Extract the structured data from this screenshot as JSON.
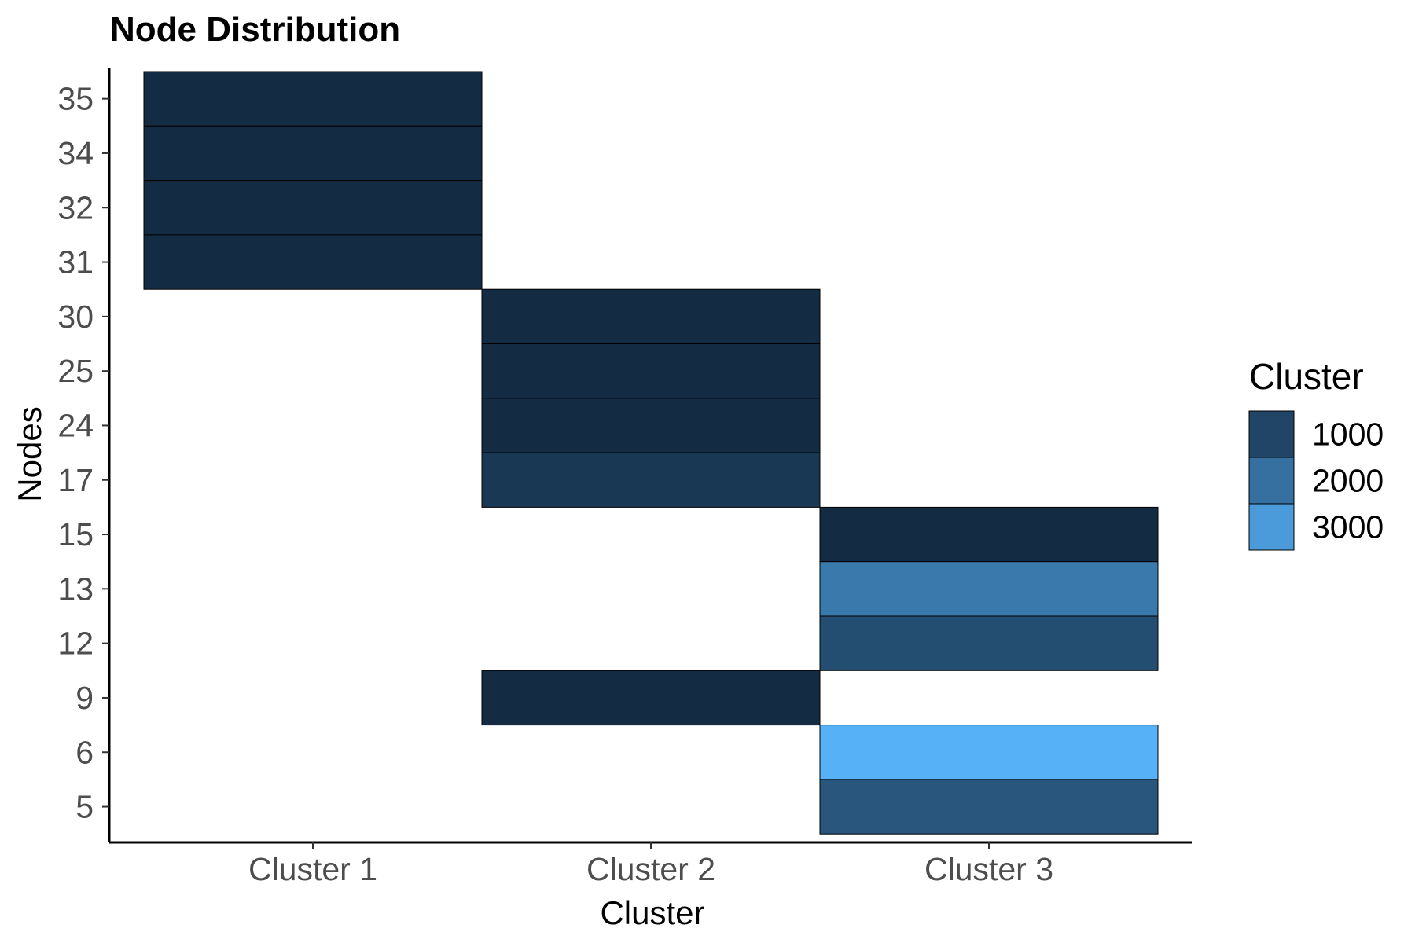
{
  "chart_data": {
    "type": "heatmap",
    "title": "Node Distribution",
    "xlabel": "Cluster",
    "ylabel": "Nodes",
    "x_categories": [
      "Cluster 1",
      "Cluster 2",
      "Cluster 3"
    ],
    "y_categories": [
      "5",
      "6",
      "9",
      "12",
      "13",
      "15",
      "17",
      "24",
      "25",
      "30",
      "31",
      "32",
      "34",
      "35"
    ],
    "cells": [
      {
        "x": "Cluster 1",
        "y": "35",
        "value": 400
      },
      {
        "x": "Cluster 1",
        "y": "34",
        "value": 400
      },
      {
        "x": "Cluster 1",
        "y": "32",
        "value": 400
      },
      {
        "x": "Cluster 1",
        "y": "31",
        "value": 400
      },
      {
        "x": "Cluster 2",
        "y": "30",
        "value": 400
      },
      {
        "x": "Cluster 2",
        "y": "25",
        "value": 400
      },
      {
        "x": "Cluster 2",
        "y": "24",
        "value": 400
      },
      {
        "x": "Cluster 2",
        "y": "17",
        "value": 700
      },
      {
        "x": "Cluster 2",
        "y": "9",
        "value": 400
      },
      {
        "x": "Cluster 3",
        "y": "15",
        "value": 400
      },
      {
        "x": "Cluster 3",
        "y": "13",
        "value": 2200
      },
      {
        "x": "Cluster 3",
        "y": "12",
        "value": 1200
      },
      {
        "x": "Cluster 3",
        "y": "6",
        "value": 3500
      },
      {
        "x": "Cluster 3",
        "y": "5",
        "value": 1400
      }
    ],
    "color_scale": {
      "low_color": "#132B43",
      "high_color": "#56B1F7",
      "domain": [
        400,
        3500
      ]
    },
    "legend": {
      "title": "Cluster",
      "position": "right",
      "entries": [
        {
          "label": "1000",
          "value": 1000
        },
        {
          "label": "2000",
          "value": 2000
        },
        {
          "label": "3000",
          "value": 3000
        }
      ]
    },
    "grid": false
  }
}
